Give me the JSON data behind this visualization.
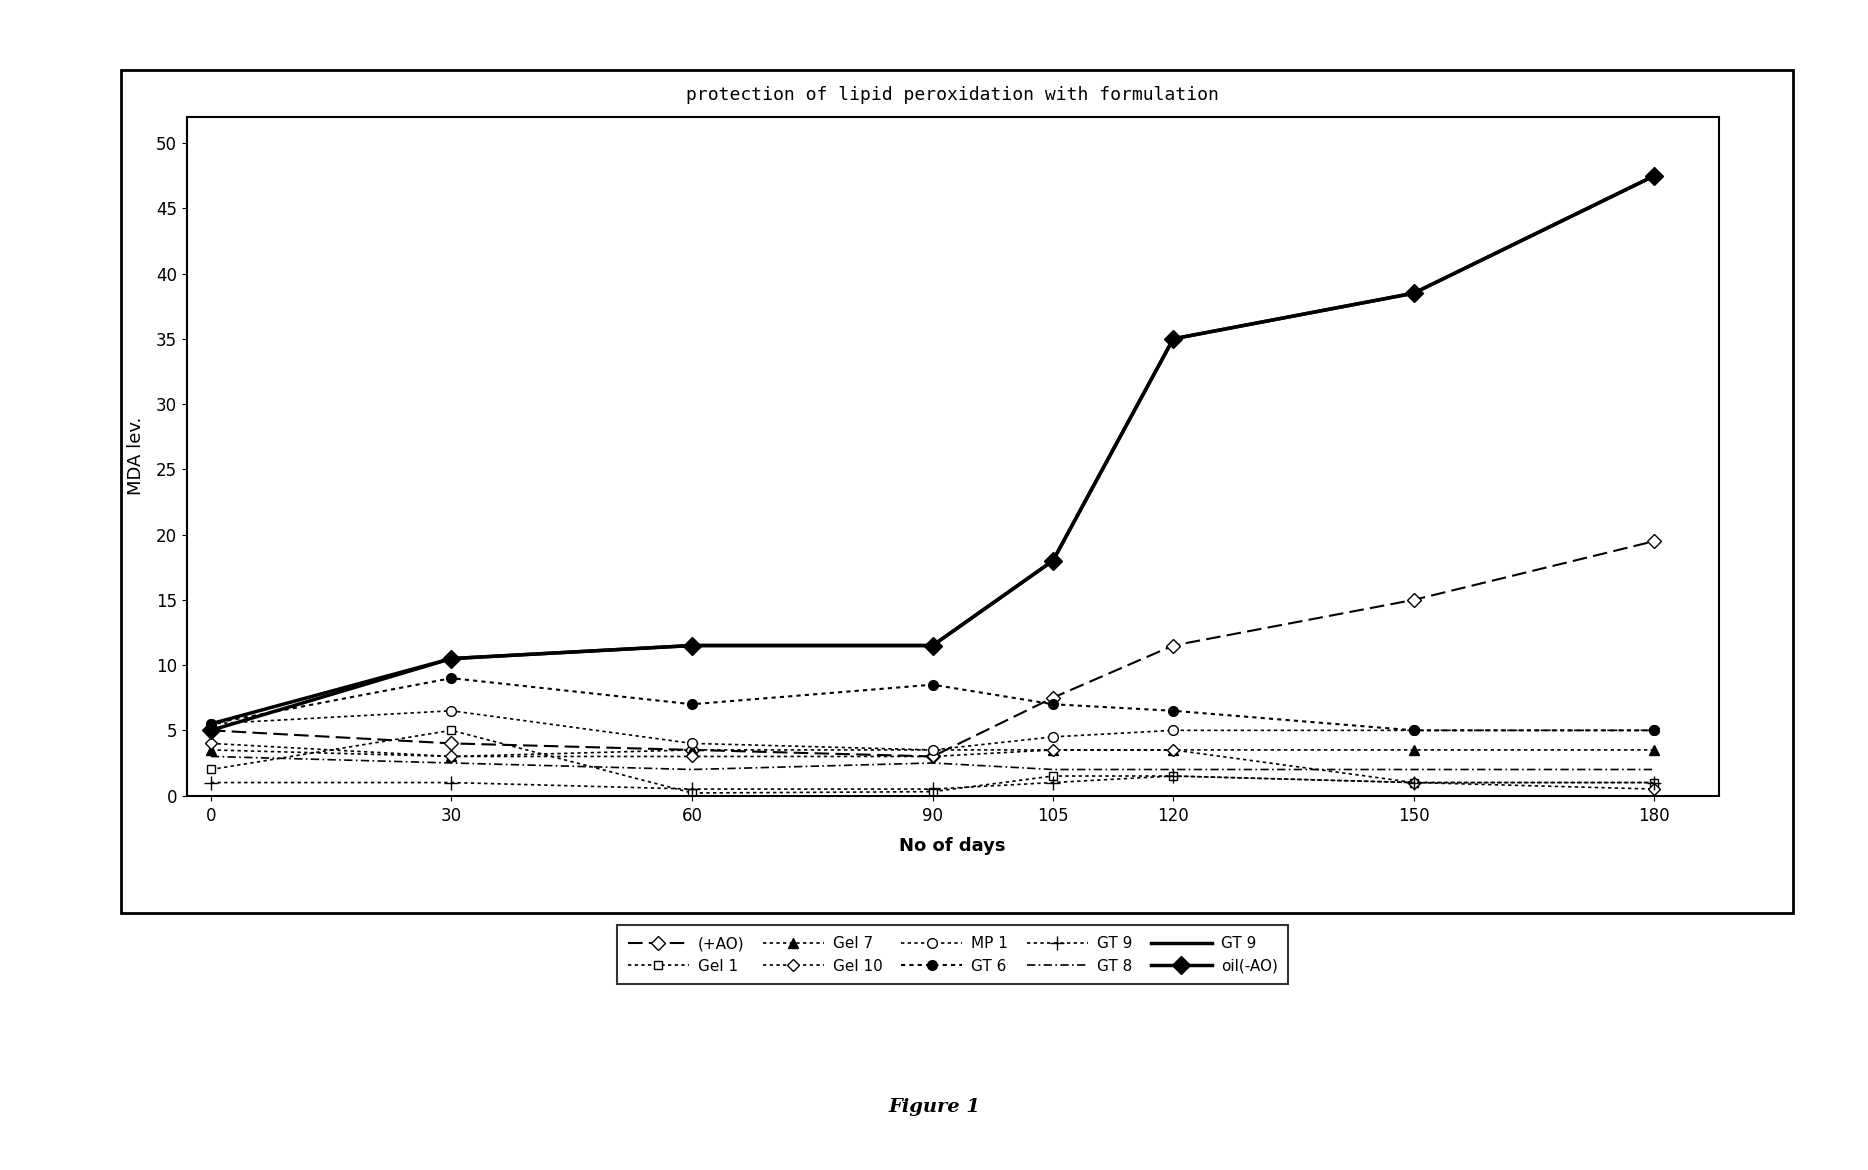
{
  "title": "protection of lipid peroxidation with formulation",
  "xlabel": "No of days",
  "ylabel": "MDA lev.",
  "figure_caption": "Figure 1",
  "x": [
    0,
    30,
    60,
    90,
    105,
    120,
    150,
    180
  ],
  "series": [
    {
      "label": "(+AO)",
      "y": [
        5.0,
        4.0,
        3.5,
        3.0,
        7.5,
        11.5,
        15.0,
        19.5
      ],
      "linestyle": "dashed",
      "marker": "D",
      "markersize": 7,
      "markerfacecolor": "white",
      "linewidth": 1.5
    },
    {
      "label": "Gel 1",
      "y": [
        2.0,
        5.0,
        0.2,
        0.3,
        1.5,
        1.5,
        1.0,
        1.0
      ],
      "linestyle": "dotted",
      "marker": "s",
      "markersize": 6,
      "markerfacecolor": "white",
      "linewidth": 1.2
    },
    {
      "label": "Gel 7",
      "y": [
        3.5,
        3.0,
        3.5,
        3.5,
        3.5,
        3.5,
        3.5,
        3.5
      ],
      "linestyle": "dotted",
      "marker": "^",
      "markersize": 7,
      "markerfacecolor": "black",
      "linewidth": 1.2
    },
    {
      "label": "Gel 10",
      "y": [
        4.0,
        3.0,
        3.0,
        3.0,
        3.5,
        3.5,
        1.0,
        0.5
      ],
      "linestyle": "dotted",
      "marker": "D",
      "markersize": 6,
      "markerfacecolor": "white",
      "linewidth": 1.2
    },
    {
      "label": "MP 1",
      "y": [
        5.5,
        6.5,
        4.0,
        3.5,
        4.5,
        5.0,
        5.0,
        5.0
      ],
      "linestyle": "dotted",
      "marker": "o",
      "markersize": 7,
      "markerfacecolor": "white",
      "linewidth": 1.2
    },
    {
      "label": "GT 6",
      "y": [
        5.5,
        9.0,
        7.0,
        8.5,
        7.0,
        6.5,
        5.0,
        5.0
      ],
      "linestyle": "dotted",
      "marker": "o",
      "markersize": 7,
      "markerfacecolor": "black",
      "linewidth": 1.5
    },
    {
      "label": "GT 9",
      "y": [
        1.0,
        1.0,
        0.5,
        0.5,
        1.0,
        1.5,
        1.0,
        1.0
      ],
      "linestyle": "dotted",
      "marker": "+",
      "markersize": 9,
      "markerfacecolor": "black",
      "linewidth": 1.2
    },
    {
      "label": "GT 8",
      "y": [
        3.0,
        2.5,
        2.0,
        2.5,
        2.0,
        2.0,
        2.0,
        2.0
      ],
      "linestyle": "dashdot",
      "marker": "None",
      "markersize": 6,
      "markerfacecolor": "white",
      "linewidth": 1.2
    },
    {
      "label": "GT 9",
      "y": [
        5.5,
        10.5,
        11.5,
        11.5,
        18.0,
        35.0,
        38.5,
        47.5
      ],
      "linestyle": "solid",
      "marker": "None",
      "markersize": 7,
      "markerfacecolor": "black",
      "linewidth": 2.5
    },
    {
      "label": "oil(-AO)",
      "y": [
        5.0,
        10.5,
        11.5,
        11.5,
        18.0,
        35.0,
        38.5,
        47.5
      ],
      "linestyle": "solid",
      "marker": "D",
      "markersize": 9,
      "markerfacecolor": "black",
      "linewidth": 2.5
    }
  ],
  "ylim": [
    0,
    52
  ],
  "yticks": [
    0,
    5,
    10,
    15,
    20,
    25,
    30,
    35,
    40,
    45,
    50
  ],
  "xticks": [
    0,
    30,
    60,
    90,
    105,
    120,
    150,
    180
  ],
  "title_fontsize": 13,
  "axis_label_fontsize": 13,
  "tick_fontsize": 12,
  "legend_fontsize": 11
}
